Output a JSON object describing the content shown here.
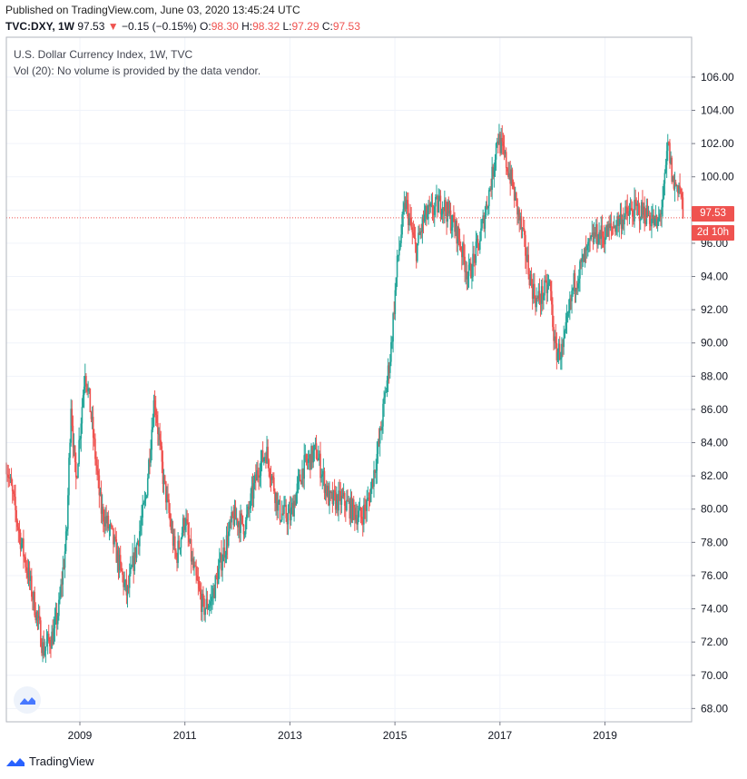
{
  "header": {
    "published": "Published on TradingView.com, June 03, 2020 13:45:24 UTC",
    "symbol": "TVC:DXY, 1W",
    "last": "97.53",
    "change_arrow": "▼",
    "change": "−0.15 (−0.15%)",
    "o_label": "O:",
    "o_value": "98.30",
    "h_label": "H:",
    "h_value": "98.32",
    "l_label": "L:",
    "l_value": "97.29",
    "c_label": "C:",
    "c_value": "97.53"
  },
  "legend": {
    "title": "U.S. Dollar Currency Index, 1W, TVC",
    "volume_note": "Vol (20): No volume is provided by the data vendor."
  },
  "price_badge": "97.53",
  "countdown_badge": "2d 10h",
  "footer": {
    "brand": "TradingView"
  },
  "colors": {
    "up": "#26a69a",
    "down": "#ef5350",
    "grid": "#f0f3fa",
    "last_line": "#ef5350"
  },
  "chart_data": {
    "type": "candlestick",
    "title": "U.S. Dollar Currency Index, 1W, TVC",
    "x_ticks": [
      "2009",
      "2011",
      "2013",
      "2015",
      "2017",
      "2019"
    ],
    "y_ticks": [
      "68.00",
      "70.00",
      "72.00",
      "74.00",
      "76.00",
      "78.00",
      "80.00",
      "82.00",
      "84.00",
      "86.00",
      "88.00",
      "90.00",
      "92.00",
      "94.00",
      "96.00",
      "98.00",
      "100.00",
      "102.00",
      "104.00",
      "106.00"
    ],
    "ylim": [
      67.2,
      108.4
    ],
    "xlim": [
      2007.6,
      2020.65
    ],
    "last_price": 97.53,
    "grid": true,
    "approx_weekly_closes": [
      [
        2007.6,
        82.8
      ],
      [
        2007.85,
        78.5
      ],
      [
        2008.0,
        76.3
      ],
      [
        2008.25,
        72.5
      ],
      [
        2008.3,
        71.5
      ],
      [
        2008.5,
        72.5
      ],
      [
        2008.6,
        74.0
      ],
      [
        2008.75,
        78.5
      ],
      [
        2008.83,
        86.5
      ],
      [
        2008.92,
        81.5
      ],
      [
        2009.1,
        88.5
      ],
      [
        2009.2,
        86.0
      ],
      [
        2009.4,
        80.0
      ],
      [
        2009.6,
        78.5
      ],
      [
        2009.9,
        74.8
      ],
      [
        2010.0,
        76.5
      ],
      [
        2010.25,
        80.5
      ],
      [
        2010.42,
        86.8
      ],
      [
        2010.58,
        82.0
      ],
      [
        2010.83,
        77.0
      ],
      [
        2011.0,
        79.5
      ],
      [
        2011.15,
        76.5
      ],
      [
        2011.35,
        74.0
      ],
      [
        2011.5,
        74.5
      ],
      [
        2011.7,
        77.0
      ],
      [
        2011.92,
        79.5
      ],
      [
        2012.15,
        79.0
      ],
      [
        2012.4,
        82.5
      ],
      [
        2012.55,
        83.5
      ],
      [
        2012.8,
        79.8
      ],
      [
        2013.0,
        79.5
      ],
      [
        2013.25,
        82.5
      ],
      [
        2013.5,
        83.5
      ],
      [
        2013.75,
        80.5
      ],
      [
        2014.0,
        80.5
      ],
      [
        2014.35,
        79.5
      ],
      [
        2014.5,
        80.5
      ],
      [
        2014.7,
        84.0
      ],
      [
        2014.92,
        89.5
      ],
      [
        2015.05,
        95.0
      ],
      [
        2015.2,
        98.5
      ],
      [
        2015.4,
        95.5
      ],
      [
        2015.55,
        97.5
      ],
      [
        2015.9,
        98.5
      ],
      [
        2016.2,
        96.5
      ],
      [
        2016.4,
        94.0
      ],
      [
        2016.6,
        96.0
      ],
      [
        2016.85,
        100.0
      ],
      [
        2016.95,
        102.5
      ],
      [
        2017.2,
        100.0
      ],
      [
        2017.4,
        97.0
      ],
      [
        2017.6,
        93.5
      ],
      [
        2017.7,
        92.5
      ],
      [
        2017.95,
        93.5
      ],
      [
        2018.05,
        89.5
      ],
      [
        2018.2,
        89.5
      ],
      [
        2018.4,
        93.5
      ],
      [
        2018.6,
        95.0
      ],
      [
        2018.8,
        96.5
      ],
      [
        2019.0,
        96.5
      ],
      [
        2019.3,
        97.5
      ],
      [
        2019.6,
        98.0
      ],
      [
        2019.8,
        97.8
      ],
      [
        2020.0,
        97.0
      ],
      [
        2020.12,
        99.0
      ],
      [
        2020.2,
        102.0
      ],
      [
        2020.3,
        99.5
      ],
      [
        2020.42,
        99.5
      ],
      [
        2020.5,
        97.53
      ]
    ]
  }
}
